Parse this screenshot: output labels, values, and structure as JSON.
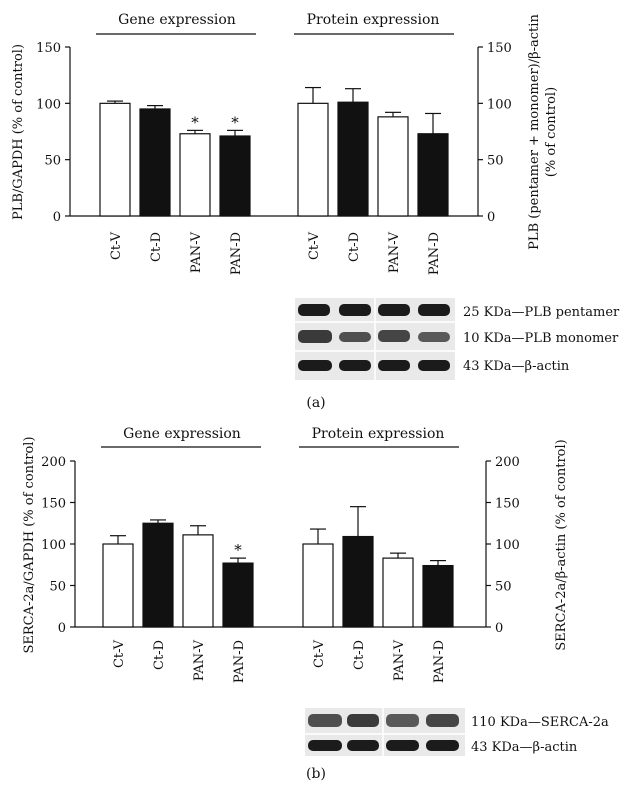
{
  "panel_labels": [
    "(a)",
    "(b)"
  ],
  "colors": {
    "open": "#ffffff",
    "solid": "#111111",
    "ink": "#111111"
  },
  "chart_data": [
    {
      "type": "bar",
      "panel": "(a)",
      "groups": [
        {
          "title": "Gene expression",
          "categories": [
            "Ct-V",
            "Ct-D",
            "PAN-V",
            "PAN-D"
          ],
          "values": [
            100,
            95,
            73,
            71
          ],
          "errors": [
            2,
            3,
            3,
            5
          ],
          "fills": [
            "open",
            "solid",
            "open",
            "solid"
          ],
          "significance": [
            "",
            "",
            "*",
            "*"
          ]
        },
        {
          "title": "Protein expression",
          "categories": [
            "Ct-V",
            "Ct-D",
            "PAN-V",
            "PAN-D"
          ],
          "values": [
            100,
            101,
            88,
            73
          ],
          "errors": [
            14,
            12,
            4,
            18
          ],
          "fills": [
            "open",
            "solid",
            "open",
            "solid"
          ],
          "significance": [
            "",
            "",
            "",
            ""
          ]
        }
      ],
      "ylabel_left": "PLB/GAPDH (% of control)",
      "ylabel_right_line1": "PLB (pentamer + monomer)/β-actin",
      "ylabel_right_line2": "(% of control)",
      "ylim": [
        0,
        150
      ],
      "yticks": [
        "0",
        "50",
        "100",
        "150"
      ],
      "grid": false,
      "blot_labels": [
        "25 KDa—PLB pentamer",
        "10 KDa—PLB monomer",
        "43 KDa—β-actin"
      ]
    },
    {
      "type": "bar",
      "panel": "(b)",
      "groups": [
        {
          "title": "Gene expression",
          "categories": [
            "Ct-V",
            "Ct-D",
            "PAN-V",
            "PAN-D"
          ],
          "values": [
            100,
            125,
            111,
            77
          ],
          "errors": [
            10,
            4,
            11,
            6
          ],
          "fills": [
            "open",
            "solid",
            "open",
            "solid"
          ],
          "significance": [
            "",
            "",
            "",
            "*"
          ]
        },
        {
          "title": "Protein expression",
          "categories": [
            "Ct-V",
            "Ct-D",
            "PAN-V",
            "PAN-D"
          ],
          "values": [
            100,
            109,
            83,
            74
          ],
          "errors": [
            18,
            36,
            6,
            6
          ],
          "fills": [
            "open",
            "solid",
            "open",
            "solid"
          ],
          "significance": [
            "",
            "",
            "",
            ""
          ]
        }
      ],
      "ylabel_left": "SERCA-2a/GAPDH (% of control)",
      "ylabel_right_line1": "SERCA-2a/β-actin (% of control)",
      "ylabel_right_line2": "",
      "ylim": [
        0,
        200
      ],
      "yticks": [
        "0",
        "50",
        "100",
        "150",
        "200"
      ],
      "grid": false,
      "blot_labels": [
        "110 KDa—SERCA-2a",
        "43 KDa—β-actin"
      ]
    }
  ]
}
